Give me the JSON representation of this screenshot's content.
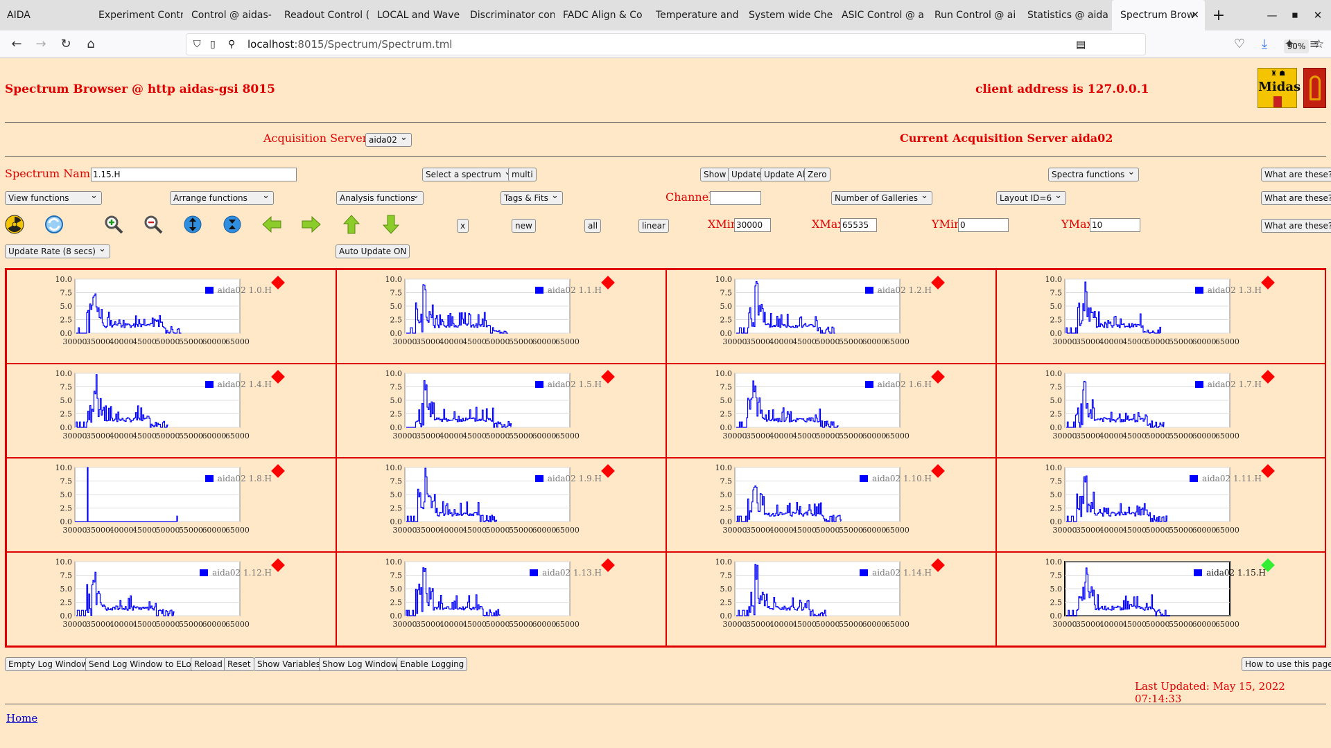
{
  "browser": {
    "app_name": "AIDA",
    "tabs": [
      "Experiment Contr",
      "Control @ aidas-",
      "Readout Control (",
      "LOCAL and Wave",
      "Discriminator con",
      "FADC Align & Co",
      "Temperature and",
      "System wide Che",
      "ASIC Control @ a",
      "Run Control @ ai",
      "Statistics @ aida"
    ],
    "active_tab": "Spectrum Brow",
    "url_host": "localhost",
    "url_rest": ":8015/Spectrum/Spectrum.tml",
    "zoom": "90%"
  },
  "header": {
    "title": "Spectrum Browser @ http aidas-gsi 8015",
    "client": "client address is 127.0.0.1",
    "logo_text": "Midas"
  },
  "acq": {
    "label": "Acquisition Servers",
    "selected": "aida02",
    "current": "Current Acquisition Server aida02"
  },
  "controls": {
    "spectrum_name_label": "Spectrum Name:",
    "spectrum_name": "1.15.H",
    "select_spectrum": "Select a spectrum",
    "multi": "multi",
    "show": "Show",
    "update": "Update",
    "update_all": "Update All",
    "zero": "Zero",
    "spectra_functions": "Spectra functions",
    "what1": "What are these?",
    "view_functions": "View functions",
    "arrange_functions": "Arrange functions",
    "analysis_functions": "Analysis functions",
    "tags_fits": "Tags & Fits",
    "channel_label": "Channel:",
    "channel": "",
    "galleries": "Number of Galleries",
    "layout": "Layout ID=6",
    "what2": "What are these?",
    "x_btn": "x",
    "new_btn": "new",
    "all_btn": "all",
    "linear_btn": "linear",
    "xmin_label": "XMin",
    "xmin": "30000",
    "xmax_label": "XMax",
    "xmax": "65535",
    "ymin_label": "YMin",
    "ymin": "0",
    "ymax_label": "YMax",
    "ymax": "10",
    "what3": "What are these?",
    "update_rate": "Update Rate (8 secs)",
    "auto_update": "Auto Update ON"
  },
  "icons": [
    "radiation-icon",
    "refresh-icon",
    "zoom-in-icon",
    "zoom-out-icon",
    "expand-y-icon",
    "compress-y-icon",
    "arrow-left-icon",
    "arrow-right-icon",
    "arrow-up-icon",
    "arrow-down-icon"
  ],
  "plots": {
    "y_ticks": [
      "10.0",
      "7.5",
      "5.0",
      "2.5",
      "0.0"
    ],
    "x_ticks": [
      "30000",
      "35000",
      "40000",
      "45000",
      "50000",
      "55000",
      "60000",
      "65000"
    ],
    "cells": [
      {
        "label": "aida02 1.0.H",
        "selected": false
      },
      {
        "label": "aida02 1.1.H",
        "selected": false
      },
      {
        "label": "aida02 1.2.H",
        "selected": false
      },
      {
        "label": "aida02 1.3.H",
        "selected": false
      },
      {
        "label": "aida02 1.4.H",
        "selected": false
      },
      {
        "label": "aida02 1.5.H",
        "selected": false
      },
      {
        "label": "aida02 1.6.H",
        "selected": false
      },
      {
        "label": "aida02 1.7.H",
        "selected": false
      },
      {
        "label": "aida02 1.8.H",
        "selected": false
      },
      {
        "label": "aida02 1.9.H",
        "selected": false
      },
      {
        "label": "aida02 1.10.H",
        "selected": false
      },
      {
        "label": "aida02 1.11.H",
        "selected": false
      },
      {
        "label": "aida02 1.12.H",
        "selected": false
      },
      {
        "label": "aida02 1.13.H",
        "selected": false
      },
      {
        "label": "aida02 1.14.H",
        "selected": false
      },
      {
        "label": "aida02 1.15.H",
        "selected": true
      }
    ]
  },
  "footer": {
    "empty_log": "Empty Log Window",
    "send_log": "Send Log Window to ELog",
    "reload": "Reload",
    "reset": "Reset",
    "show_vars": "Show Variables",
    "show_log": "Show Log Window",
    "enable_logging": "Enable Logging",
    "how_to": "How to use this page",
    "last_updated": "Last Updated: May 15, 2022 07:14:33",
    "home": "Home"
  },
  "colors": {
    "accent": "#e00000",
    "trace": "#0000ff",
    "marker_red": "#ff0000",
    "marker_green": "#33ee33",
    "page_bg": "#ffe8c8"
  }
}
